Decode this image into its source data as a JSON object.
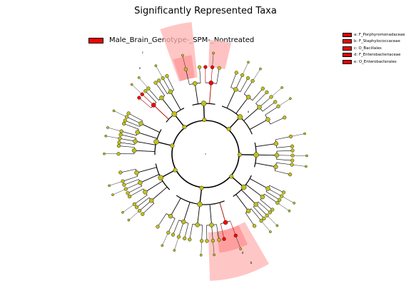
{
  "title": "Significantly Represented Taxa",
  "group_legend": {
    "label": "Male_Brain_Genotype-_SPM-_Nontreated",
    "color": "#ff0000"
  },
  "taxa_legend": [
    "a: F_Porphyromonadaceae",
    "b: F_Staphylococcaceae",
    "c: O_Bacillales",
    "d: F_Enterobacteriaceae",
    "e: O_Enterobacterales"
  ],
  "clade_letters": [
    "a",
    "b",
    "c",
    "d",
    "e"
  ],
  "colors": {
    "node": "#bfbf1f",
    "highlight": "#ff0000",
    "shade": "#ffb3b3"
  }
}
